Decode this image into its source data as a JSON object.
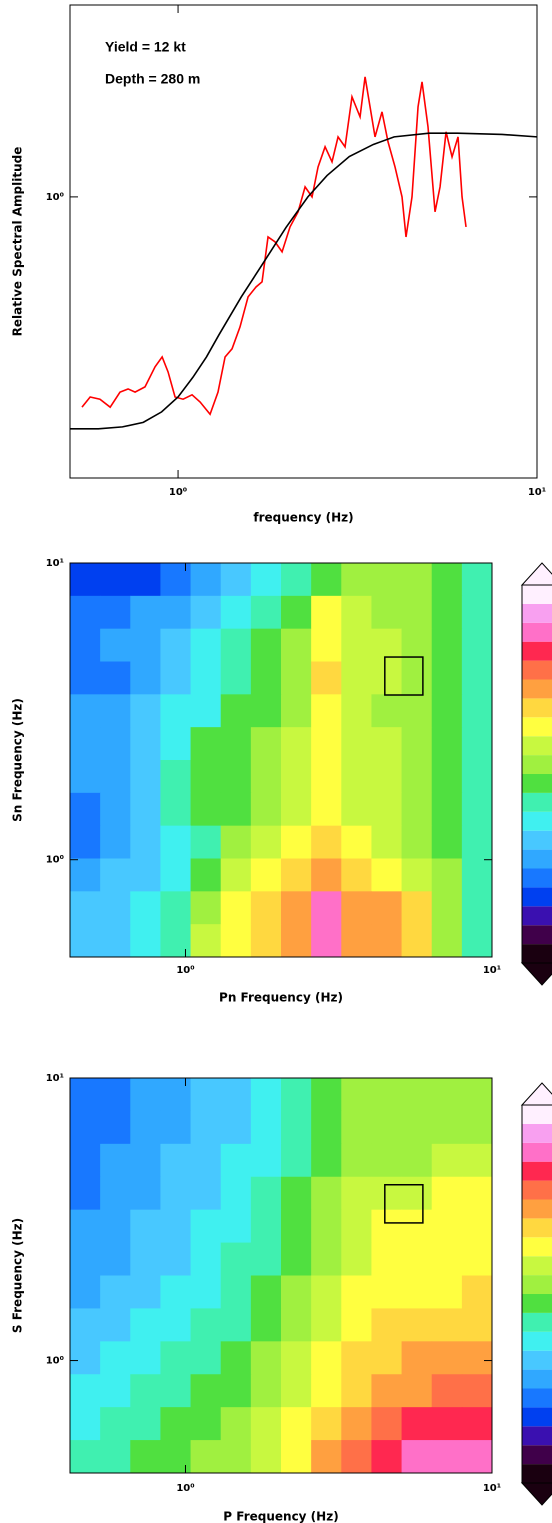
{
  "chart_data": [
    {
      "type": "line",
      "xlabel": "frequency (Hz)",
      "ylabel": "Relative Spectral Amplitude",
      "annotations": [
        "Yield = 12 kt",
        "Depth = 280 m"
      ],
      "xlog": true,
      "ylog": true,
      "xlim": [
        0.5,
        10
      ],
      "ylim": [
        0.2,
        3
      ],
      "xticks": [
        {
          "value": 1,
          "label": "10⁰"
        },
        {
          "value": 10,
          "label": "10¹"
        }
      ],
      "yticks": [
        {
          "value": 1,
          "label": "10⁰"
        }
      ],
      "series": [
        {
          "color": "#ff0000",
          "x": [
            0.54,
            0.569,
            0.606,
            0.647,
            0.689,
            0.726,
            0.759,
            0.809,
            0.863,
            0.903,
            0.938,
            0.981,
            1.033,
            1.094,
            1.152,
            1.228,
            1.292,
            1.352,
            1.414,
            1.488,
            1.567,
            1.649,
            1.714,
            1.781,
            1.863,
            1.949,
            2.051,
            2.16,
            2.259,
            2.362,
            2.455,
            2.568,
            2.685,
            2.791,
            2.919,
            3.052,
            3.214,
            3.319,
            3.427,
            3.538,
            3.7,
            3.846,
            4.022,
            4.207,
            4.316,
            4.485,
            4.662,
            4.783,
            4.97,
            5.199,
            5.369,
            5.58,
            5.799,
            6.026,
            6.183,
            6.343
          ],
          "values": [
            0.3,
            0.318,
            0.314,
            0.3,
            0.327,
            0.333,
            0.327,
            0.337,
            0.378,
            0.4,
            0.367,
            0.318,
            0.314,
            0.322,
            0.309,
            0.288,
            0.327,
            0.4,
            0.419,
            0.475,
            0.564,
            0.597,
            0.615,
            0.795,
            0.773,
            0.73,
            0.842,
            0.918,
            1.059,
            1.0,
            1.187,
            1.332,
            1.222,
            1.41,
            1.332,
            1.773,
            1.581,
            1.988,
            1.674,
            1.41,
            1.627,
            1.37,
            1.187,
            1.0,
            0.795,
            1.0,
            1.674,
            1.932,
            1.493,
            0.918,
            1.059,
            1.451,
            1.257,
            1.41,
            1.0,
            0.842
          ]
        },
        {
          "color": "#000000",
          "x": [
            0.5,
            0.6,
            0.7,
            0.8,
            0.9,
            1.0,
            1.1,
            1.2,
            1.3,
            1.5,
            1.7,
            2.0,
            2.3,
            2.6,
            3.0,
            3.5,
            4,
            5,
            6,
            8,
            10
          ],
          "values": [
            0.265,
            0.265,
            0.268,
            0.275,
            0.292,
            0.318,
            0.356,
            0.4,
            0.454,
            0.564,
            0.67,
            0.84,
            1.0,
            1.13,
            1.26,
            1.35,
            1.41,
            1.44,
            1.44,
            1.43,
            1.41
          ]
        }
      ]
    },
    {
      "type": "heatmap",
      "xlabel": "Pn Frequency (Hz)",
      "ylabel": "Sn Frequency (Hz)",
      "xlog": true,
      "ylog": true,
      "xlim": [
        0.42,
        10
      ],
      "ylim": [
        0.47,
        10
      ],
      "xticks": [
        {
          "value": 1,
          "label": "10⁰"
        },
        {
          "value": 10,
          "label": "10¹"
        }
      ],
      "yticks": [
        {
          "value": 1,
          "label": "10⁰"
        },
        {
          "value": 10,
          "label": "10¹"
        }
      ],
      "box": {
        "x": [
          4.47,
          5.95
        ],
        "y": [
          3.59,
          4.82
        ]
      },
      "colormap": [
        "#1a0010",
        "#40004a",
        "#3a10b0",
        "#0040f0",
        "#1878ff",
        "#30a8ff",
        "#48c8ff",
        "#40f0f0",
        "#40f0b0",
        "#50e040",
        "#a0f040",
        "#c8f840",
        "#ffff40",
        "#ffd840",
        "#ffa040",
        "#ff7048",
        "#ff2850",
        "#ff70c8",
        "#f8a0f0",
        "#fff0ff"
      ],
      "z": [
        [
          3,
          3,
          3,
          4,
          5,
          6,
          7,
          8,
          9,
          10,
          10,
          10,
          9,
          8
        ],
        [
          4,
          4,
          5,
          5,
          6,
          7,
          8,
          9,
          12,
          11,
          10,
          10,
          9,
          8
        ],
        [
          4,
          5,
          5,
          6,
          7,
          8,
          9,
          10,
          12,
          11,
          11,
          10,
          9,
          8
        ],
        [
          4,
          4,
          5,
          6,
          7,
          8,
          9,
          10,
          13,
          11,
          11,
          10,
          9,
          8
        ],
        [
          5,
          5,
          6,
          7,
          7,
          9,
          9,
          10,
          12,
          11,
          10,
          10,
          9,
          8
        ],
        [
          5,
          5,
          6,
          7,
          9,
          9,
          10,
          11,
          12,
          11,
          11,
          10,
          9,
          8
        ],
        [
          5,
          5,
          6,
          8,
          9,
          9,
          10,
          11,
          12,
          11,
          11,
          10,
          9,
          8
        ],
        [
          4,
          5,
          6,
          8,
          9,
          9,
          10,
          11,
          12,
          11,
          11,
          10,
          9,
          8
        ],
        [
          4,
          5,
          6,
          7,
          8,
          10,
          11,
          12,
          13,
          12,
          11,
          10,
          9,
          8
        ],
        [
          5,
          6,
          6,
          7,
          9,
          11,
          12,
          13,
          14,
          13,
          12,
          11,
          10,
          8
        ],
        [
          6,
          6,
          7,
          8,
          10,
          12,
          13,
          14,
          17,
          14,
          14,
          13,
          10,
          8
        ],
        [
          6,
          6,
          7,
          8,
          11,
          12,
          13,
          14,
          17,
          14,
          14,
          13,
          10,
          8
        ]
      ]
    },
    {
      "type": "heatmap",
      "xlabel": "P Frequency (Hz)",
      "ylabel": "S Frequency (Hz)",
      "xlog": true,
      "ylog": true,
      "xlim": [
        0.42,
        10
      ],
      "ylim": [
        0.4,
        10
      ],
      "xticks": [
        {
          "value": 1,
          "label": "10⁰"
        },
        {
          "value": 10,
          "label": "10¹"
        }
      ],
      "yticks": [
        {
          "value": 1,
          "label": "10⁰"
        },
        {
          "value": 10,
          "label": "10¹"
        }
      ],
      "box": {
        "x": [
          4.47,
          5.95
        ],
        "y": [
          3.07,
          4.19
        ]
      },
      "colormap": [
        "#1a0010",
        "#40004a",
        "#3a10b0",
        "#0040f0",
        "#1878ff",
        "#30a8ff",
        "#48c8ff",
        "#40f0f0",
        "#40f0b0",
        "#50e040",
        "#a0f040",
        "#c8f840",
        "#ffff40",
        "#ffd840",
        "#ffa040",
        "#ff7048",
        "#ff2850",
        "#ff70c8",
        "#f8a0f0",
        "#fff0ff"
      ],
      "z": [
        [
          4,
          4,
          5,
          5,
          6,
          6,
          7,
          8,
          9,
          10,
          10,
          10,
          10,
          10
        ],
        [
          4,
          4,
          5,
          5,
          6,
          6,
          7,
          8,
          9,
          10,
          10,
          10,
          10,
          10
        ],
        [
          4,
          5,
          5,
          6,
          6,
          7,
          7,
          8,
          9,
          10,
          10,
          10,
          11,
          11
        ],
        [
          4,
          5,
          5,
          6,
          6,
          7,
          8,
          9,
          10,
          11,
          11,
          11,
          12,
          12
        ],
        [
          5,
          5,
          6,
          6,
          7,
          7,
          8,
          9,
          10,
          11,
          12,
          12,
          12,
          12
        ],
        [
          5,
          5,
          6,
          6,
          7,
          8,
          8,
          9,
          10,
          11,
          12,
          12,
          12,
          12
        ],
        [
          5,
          6,
          6,
          7,
          7,
          8,
          9,
          10,
          11,
          12,
          12,
          12,
          12,
          13
        ],
        [
          6,
          6,
          7,
          7,
          8,
          8,
          9,
          10,
          11,
          12,
          13,
          13,
          13,
          13
        ],
        [
          6,
          7,
          7,
          8,
          8,
          9,
          10,
          11,
          12,
          13,
          13,
          14,
          14,
          14
        ],
        [
          7,
          7,
          8,
          8,
          9,
          9,
          10,
          11,
          12,
          13,
          14,
          14,
          15,
          15
        ],
        [
          7,
          8,
          8,
          9,
          9,
          10,
          11,
          12,
          13,
          14,
          15,
          16,
          16,
          16
        ],
        [
          8,
          8,
          9,
          9,
          10,
          10,
          11,
          12,
          14,
          15,
          16,
          17,
          17,
          17
        ]
      ]
    }
  ]
}
